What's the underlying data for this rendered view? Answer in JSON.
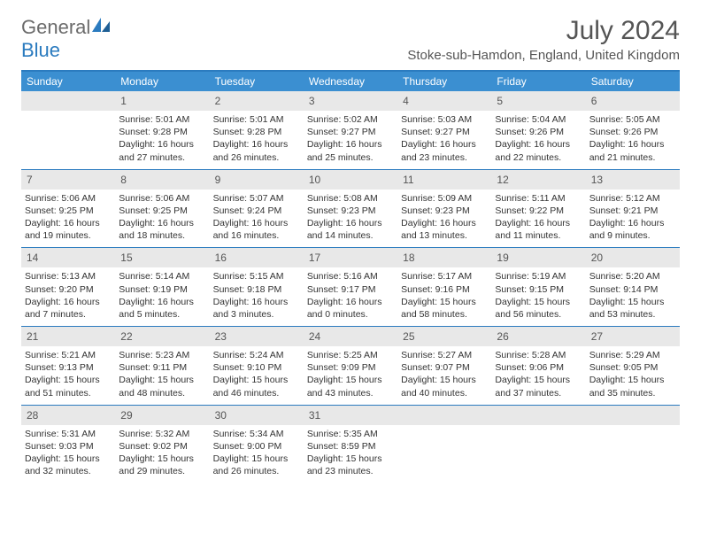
{
  "logo": {
    "text1": "General",
    "text2": "Blue"
  },
  "title": "July 2024",
  "location": "Stoke-sub-Hamdon, England, United Kingdom",
  "colors": {
    "header_bar": "#3b8fd1",
    "accent_line": "#2b7bbf",
    "daynum_bg": "#e8e8e8",
    "text": "#333333",
    "muted": "#555555"
  },
  "daynames": [
    "Sunday",
    "Monday",
    "Tuesday",
    "Wednesday",
    "Thursday",
    "Friday",
    "Saturday"
  ],
  "weeks": [
    [
      {
        "n": "",
        "sr": "",
        "ss": "",
        "dl": ""
      },
      {
        "n": "1",
        "sr": "Sunrise: 5:01 AM",
        "ss": "Sunset: 9:28 PM",
        "dl": "Daylight: 16 hours and 27 minutes."
      },
      {
        "n": "2",
        "sr": "Sunrise: 5:01 AM",
        "ss": "Sunset: 9:28 PM",
        "dl": "Daylight: 16 hours and 26 minutes."
      },
      {
        "n": "3",
        "sr": "Sunrise: 5:02 AM",
        "ss": "Sunset: 9:27 PM",
        "dl": "Daylight: 16 hours and 25 minutes."
      },
      {
        "n": "4",
        "sr": "Sunrise: 5:03 AM",
        "ss": "Sunset: 9:27 PM",
        "dl": "Daylight: 16 hours and 23 minutes."
      },
      {
        "n": "5",
        "sr": "Sunrise: 5:04 AM",
        "ss": "Sunset: 9:26 PM",
        "dl": "Daylight: 16 hours and 22 minutes."
      },
      {
        "n": "6",
        "sr": "Sunrise: 5:05 AM",
        "ss": "Sunset: 9:26 PM",
        "dl": "Daylight: 16 hours and 21 minutes."
      }
    ],
    [
      {
        "n": "7",
        "sr": "Sunrise: 5:06 AM",
        "ss": "Sunset: 9:25 PM",
        "dl": "Daylight: 16 hours and 19 minutes."
      },
      {
        "n": "8",
        "sr": "Sunrise: 5:06 AM",
        "ss": "Sunset: 9:25 PM",
        "dl": "Daylight: 16 hours and 18 minutes."
      },
      {
        "n": "9",
        "sr": "Sunrise: 5:07 AM",
        "ss": "Sunset: 9:24 PM",
        "dl": "Daylight: 16 hours and 16 minutes."
      },
      {
        "n": "10",
        "sr": "Sunrise: 5:08 AM",
        "ss": "Sunset: 9:23 PM",
        "dl": "Daylight: 16 hours and 14 minutes."
      },
      {
        "n": "11",
        "sr": "Sunrise: 5:09 AM",
        "ss": "Sunset: 9:23 PM",
        "dl": "Daylight: 16 hours and 13 minutes."
      },
      {
        "n": "12",
        "sr": "Sunrise: 5:11 AM",
        "ss": "Sunset: 9:22 PM",
        "dl": "Daylight: 16 hours and 11 minutes."
      },
      {
        "n": "13",
        "sr": "Sunrise: 5:12 AM",
        "ss": "Sunset: 9:21 PM",
        "dl": "Daylight: 16 hours and 9 minutes."
      }
    ],
    [
      {
        "n": "14",
        "sr": "Sunrise: 5:13 AM",
        "ss": "Sunset: 9:20 PM",
        "dl": "Daylight: 16 hours and 7 minutes."
      },
      {
        "n": "15",
        "sr": "Sunrise: 5:14 AM",
        "ss": "Sunset: 9:19 PM",
        "dl": "Daylight: 16 hours and 5 minutes."
      },
      {
        "n": "16",
        "sr": "Sunrise: 5:15 AM",
        "ss": "Sunset: 9:18 PM",
        "dl": "Daylight: 16 hours and 3 minutes."
      },
      {
        "n": "17",
        "sr": "Sunrise: 5:16 AM",
        "ss": "Sunset: 9:17 PM",
        "dl": "Daylight: 16 hours and 0 minutes."
      },
      {
        "n": "18",
        "sr": "Sunrise: 5:17 AM",
        "ss": "Sunset: 9:16 PM",
        "dl": "Daylight: 15 hours and 58 minutes."
      },
      {
        "n": "19",
        "sr": "Sunrise: 5:19 AM",
        "ss": "Sunset: 9:15 PM",
        "dl": "Daylight: 15 hours and 56 minutes."
      },
      {
        "n": "20",
        "sr": "Sunrise: 5:20 AM",
        "ss": "Sunset: 9:14 PM",
        "dl": "Daylight: 15 hours and 53 minutes."
      }
    ],
    [
      {
        "n": "21",
        "sr": "Sunrise: 5:21 AM",
        "ss": "Sunset: 9:13 PM",
        "dl": "Daylight: 15 hours and 51 minutes."
      },
      {
        "n": "22",
        "sr": "Sunrise: 5:23 AM",
        "ss": "Sunset: 9:11 PM",
        "dl": "Daylight: 15 hours and 48 minutes."
      },
      {
        "n": "23",
        "sr": "Sunrise: 5:24 AM",
        "ss": "Sunset: 9:10 PM",
        "dl": "Daylight: 15 hours and 46 minutes."
      },
      {
        "n": "24",
        "sr": "Sunrise: 5:25 AM",
        "ss": "Sunset: 9:09 PM",
        "dl": "Daylight: 15 hours and 43 minutes."
      },
      {
        "n": "25",
        "sr": "Sunrise: 5:27 AM",
        "ss": "Sunset: 9:07 PM",
        "dl": "Daylight: 15 hours and 40 minutes."
      },
      {
        "n": "26",
        "sr": "Sunrise: 5:28 AM",
        "ss": "Sunset: 9:06 PM",
        "dl": "Daylight: 15 hours and 37 minutes."
      },
      {
        "n": "27",
        "sr": "Sunrise: 5:29 AM",
        "ss": "Sunset: 9:05 PM",
        "dl": "Daylight: 15 hours and 35 minutes."
      }
    ],
    [
      {
        "n": "28",
        "sr": "Sunrise: 5:31 AM",
        "ss": "Sunset: 9:03 PM",
        "dl": "Daylight: 15 hours and 32 minutes."
      },
      {
        "n": "29",
        "sr": "Sunrise: 5:32 AM",
        "ss": "Sunset: 9:02 PM",
        "dl": "Daylight: 15 hours and 29 minutes."
      },
      {
        "n": "30",
        "sr": "Sunrise: 5:34 AM",
        "ss": "Sunset: 9:00 PM",
        "dl": "Daylight: 15 hours and 26 minutes."
      },
      {
        "n": "31",
        "sr": "Sunrise: 5:35 AM",
        "ss": "Sunset: 8:59 PM",
        "dl": "Daylight: 15 hours and 23 minutes."
      },
      {
        "n": "",
        "sr": "",
        "ss": "",
        "dl": ""
      },
      {
        "n": "",
        "sr": "",
        "ss": "",
        "dl": ""
      },
      {
        "n": "",
        "sr": "",
        "ss": "",
        "dl": ""
      }
    ]
  ]
}
